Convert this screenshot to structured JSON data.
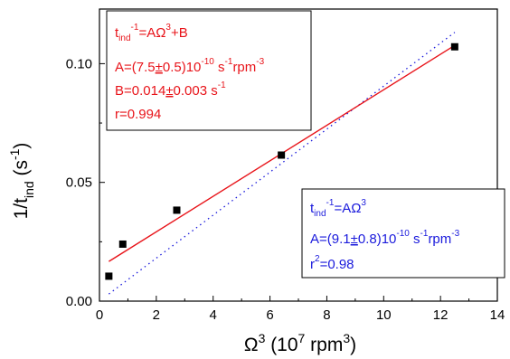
{
  "chart_data": {
    "type": "scatter",
    "xlabel": {
      "base": "Ω",
      "sup1": "3",
      "mid": " (10",
      "sup2": "7",
      "after": " rpm",
      "sup3": "3",
      "end": ")"
    },
    "ylabel": {
      "base": "1/t",
      "sub": "ind",
      "after": " (s",
      "sup": "-1",
      "end": ")"
    },
    "xlim": [
      0,
      14
    ],
    "ylim": [
      0,
      0.123
    ],
    "x_ticks": [
      0,
      2,
      4,
      6,
      8,
      10,
      12,
      14
    ],
    "x_tick_labels": [
      "0",
      "2",
      "4",
      "6",
      "8",
      "10",
      "12",
      "14"
    ],
    "y_ticks": [
      0.0,
      0.05,
      0.1
    ],
    "y_tick_labels": [
      "0.00",
      "0.05",
      "0.10"
    ],
    "points": [
      {
        "x": 0.33,
        "y": 0.0105
      },
      {
        "x": 0.82,
        "y": 0.024
      },
      {
        "x": 2.72,
        "y": 0.0383
      },
      {
        "x": 6.4,
        "y": 0.0615
      },
      {
        "x": 12.5,
        "y": 0.1071
      }
    ],
    "fit_linear": {
      "x": [
        0.33,
        12.5
      ],
      "color": "#e8141a"
    },
    "fit_proportional": {
      "x": [
        0.33,
        12.5
      ],
      "color": "#1a1adc"
    },
    "marker_color": "#000000",
    "annotations": {
      "linear": {
        "line1": {
          "t": "t",
          "sub": "ind",
          "sup": "-1",
          "rest": "=AΩ",
          "sup2": "3",
          "end": "+B"
        },
        "line2": {
          "a": "A=(7.5",
          "pm": "±",
          "b": "0.5)10",
          "sup": "-10",
          "c": " s",
          "sup2": "-1",
          "d": "rpm",
          "sup3": "-3"
        },
        "line3": {
          "a": "B=0.014",
          "pm": "±",
          "b": "0.003 s",
          "sup": "-1"
        },
        "line4": "r=0.994"
      },
      "proportional": {
        "line1": {
          "t": "t",
          "sub": "ind",
          "sup": "-1",
          "rest": "=AΩ",
          "sup2": "3"
        },
        "line2": {
          "a": "A=(9.1",
          "pm": "±",
          "b": "0.8)10",
          "sup": "-10",
          "c": " s",
          "sup2": "-1",
          "d": "rpm",
          "sup3": "-3"
        },
        "line3": {
          "a": "r",
          "sup": "2",
          "b": "=0.98"
        }
      }
    }
  }
}
